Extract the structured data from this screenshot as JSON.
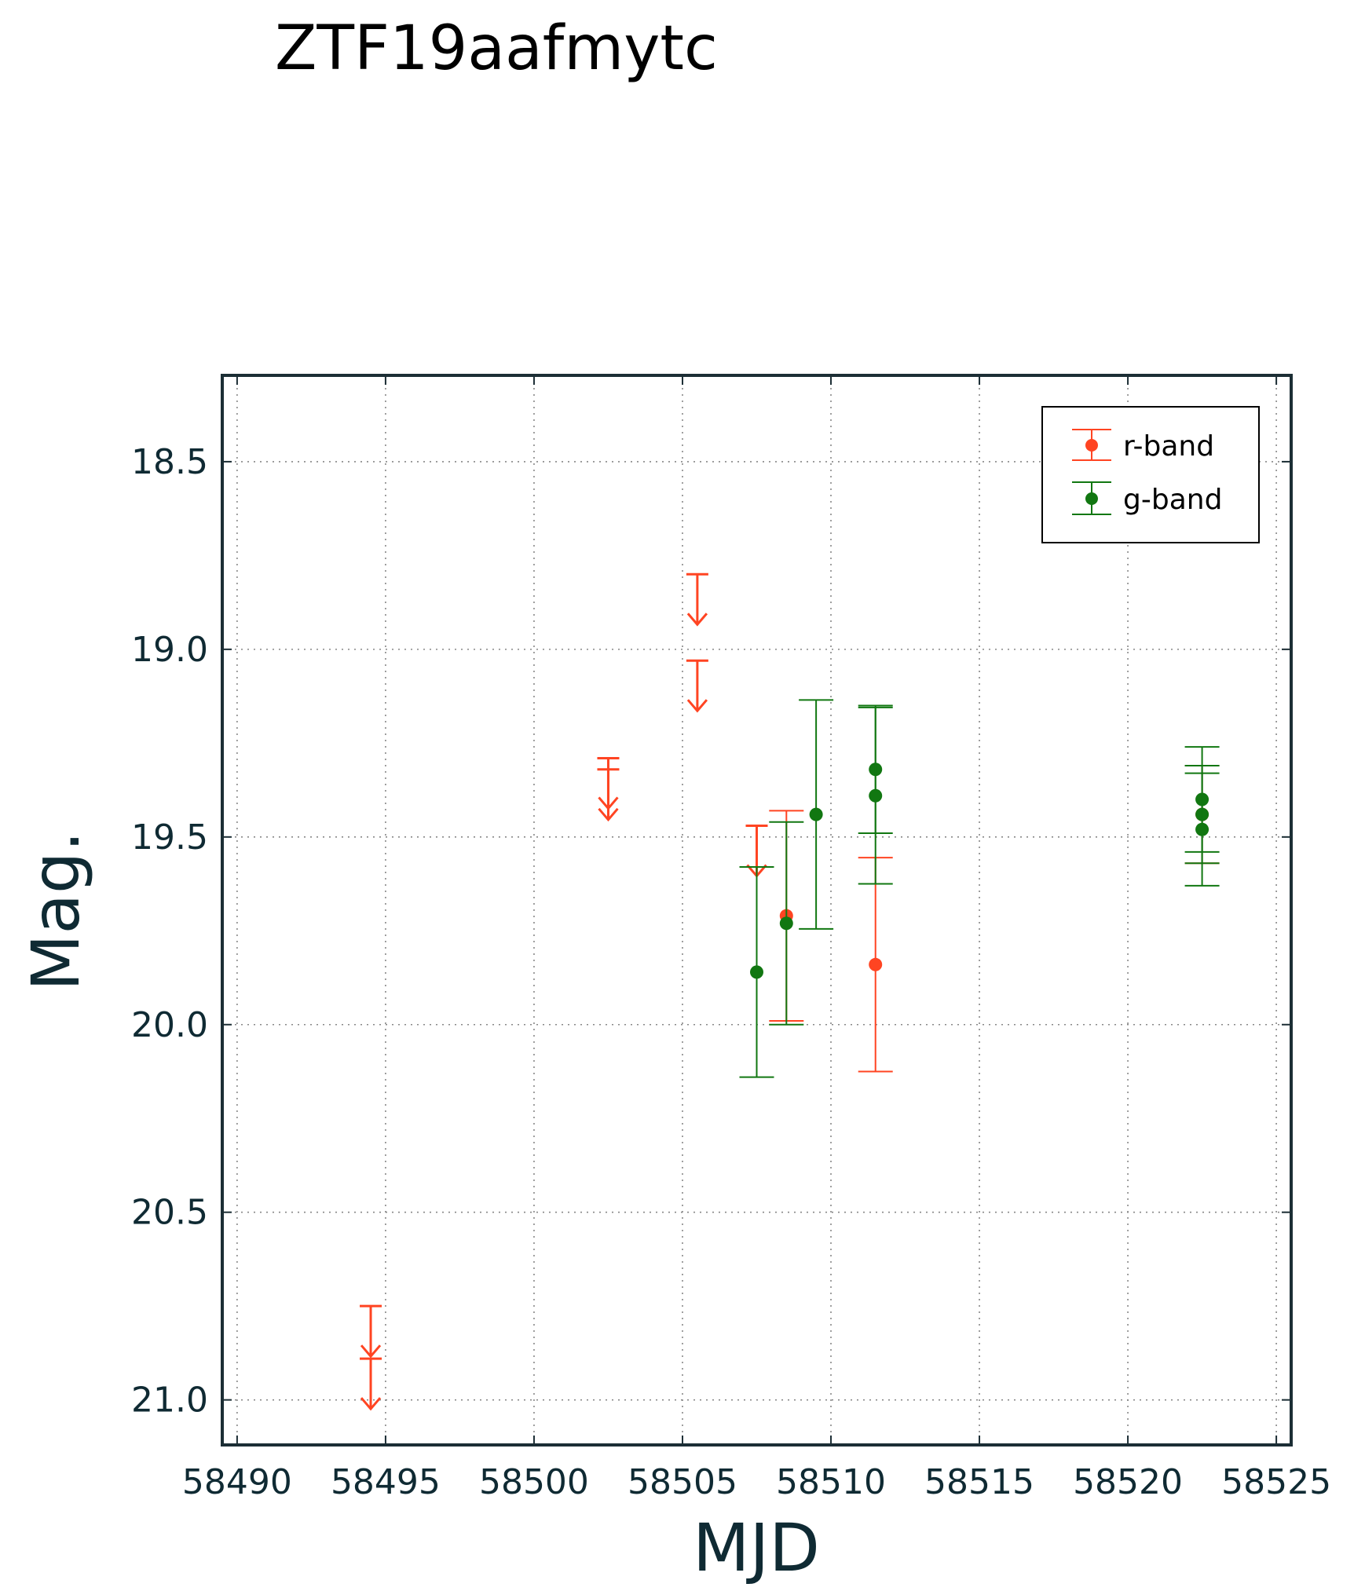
{
  "chart_data": {
    "type": "scatter",
    "title": "ZTF19aafmytc",
    "xlabel": "MJD",
    "ylabel": "Mag.",
    "xlim": [
      58489.5,
      58525.5
    ],
    "ylim": [
      21.12,
      18.27
    ],
    "y_inverted": true,
    "xticks": [
      58490,
      58495,
      58500,
      58505,
      58510,
      58515,
      58520,
      58525
    ],
    "yticks": [
      18.5,
      19.0,
      19.5,
      20.0,
      20.5,
      21.0
    ],
    "xtick_labels": [
      "58490",
      "58495",
      "58500",
      "58505",
      "58510",
      "58515",
      "58520",
      "58525"
    ],
    "ytick_labels": [
      "18.5",
      "19.0",
      "19.5",
      "20.0",
      "20.5",
      "21.0"
    ],
    "grid": true,
    "legend_position": "top-right",
    "colors": {
      "r": "#ff4422",
      "g": "#117711",
      "frame": "#1c2e35"
    },
    "series": [
      {
        "name": "r-band",
        "color": "#ff4422",
        "detections": [
          {
            "x": 58508.5,
            "y": 19.71,
            "err": 0.28
          },
          {
            "x": 58511.5,
            "y": 19.84,
            "err": 0.285
          },
          {
            "x": 58522.5,
            "y": 19.44,
            "err": 0.13
          }
        ],
        "upper_limits": [
          {
            "x": 58494.5,
            "y": 20.75
          },
          {
            "x": 58494.5,
            "y": 20.89
          },
          {
            "x": 58502.5,
            "y": 19.29
          },
          {
            "x": 58502.5,
            "y": 19.32
          },
          {
            "x": 58505.5,
            "y": 18.8
          },
          {
            "x": 58505.5,
            "y": 19.03
          },
          {
            "x": 58507.5,
            "y": 19.47
          }
        ]
      },
      {
        "name": "g-band",
        "color": "#117711",
        "detections": [
          {
            "x": 58507.5,
            "y": 19.86,
            "err": 0.28
          },
          {
            "x": 58508.5,
            "y": 19.73,
            "err": 0.27
          },
          {
            "x": 58509.5,
            "y": 19.44,
            "err": 0.305
          },
          {
            "x": 58511.5,
            "y": 19.32,
            "err": 0.17
          },
          {
            "x": 58511.5,
            "y": 19.39,
            "err": 0.235
          },
          {
            "x": 58522.5,
            "y": 19.4,
            "err": 0.14
          },
          {
            "x": 58522.5,
            "y": 19.44,
            "err": 0.13
          },
          {
            "x": 58522.5,
            "y": 19.48,
            "err": 0.15
          }
        ]
      }
    ]
  }
}
